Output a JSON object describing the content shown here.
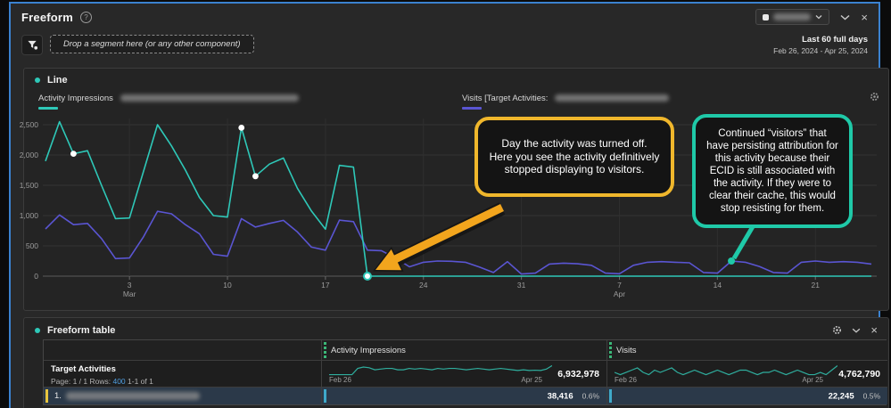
{
  "colors": {
    "accent_blue": "#3b82d0",
    "teal": "#2ec8b8",
    "purple": "#5a55d2",
    "callout_yellow": "#f0b72c",
    "arrow_orange": "#f2a51d",
    "callout_teal": "#1fc9a8",
    "green_marker": "#3bb878",
    "yellow_row_marker": "#e8c53e",
    "row_highlight": "#2b3949",
    "link_blue": "#4f9ee0"
  },
  "panel": {
    "title": "Freeform",
    "info_icon": "?",
    "drop_zone_label": "Drop a segment here (or any other component)",
    "date_range_label": "Last 60 full days",
    "date_range_dates": "Feb 26, 2024 - Apr 25, 2024"
  },
  "line_chart": {
    "title": "Line",
    "legend": [
      {
        "prefix": "Activity Impressions",
        "redacted": true,
        "color": "#2ec8b8"
      },
      {
        "prefix": "Visits [Target Activities:",
        "redacted": true,
        "color": "#5a55d2"
      }
    ]
  },
  "chart_data": {
    "type": "line",
    "title": "Line",
    "x_range": [
      "Feb 26, 2024",
      "Apr 25, 2024"
    ],
    "x_days": 60,
    "xticks": [
      {
        "day": 7,
        "line1": "3",
        "line2": "Mar"
      },
      {
        "day": 14,
        "line1": "10"
      },
      {
        "day": 21,
        "line1": "17"
      },
      {
        "day": 28,
        "line1": "24"
      },
      {
        "day": 35,
        "line1": "31"
      },
      {
        "day": 42,
        "line1": "7",
        "line2": "Apr"
      },
      {
        "day": 49,
        "line1": "14"
      },
      {
        "day": 56,
        "line1": "21"
      }
    ],
    "yticks": [
      0,
      500,
      1000,
      1500,
      2000,
      2500
    ],
    "ylim": [
      0,
      2500
    ],
    "grid": true,
    "legend_position": "top",
    "series": [
      {
        "name": "Activity Impressions",
        "color": "#2ec8b8",
        "values": [
          1900,
          2550,
          2020,
          2070,
          1500,
          950,
          960,
          1730,
          2500,
          2150,
          1750,
          1300,
          1000,
          975,
          2450,
          1650,
          1850,
          1950,
          1450,
          1075,
          775,
          1830,
          1800,
          0,
          0,
          0,
          0,
          0,
          0,
          0,
          0,
          0,
          0,
          0,
          0,
          0,
          0,
          0,
          0,
          0,
          0,
          0,
          0,
          0,
          0,
          0,
          0,
          0,
          0,
          0,
          0,
          0,
          0,
          0,
          0,
          0,
          0,
          0,
          0,
          0
        ]
      },
      {
        "name": "Visits",
        "color": "#5a55d2",
        "values": [
          780,
          1010,
          850,
          870,
          620,
          290,
          300,
          650,
          1070,
          1030,
          850,
          700,
          360,
          330,
          950,
          810,
          870,
          920,
          730,
          480,
          430,
          925,
          900,
          430,
          420,
          300,
          155,
          230,
          250,
          245,
          230,
          150,
          60,
          240,
          35,
          50,
          200,
          215,
          205,
          180,
          50,
          40,
          180,
          230,
          240,
          230,
          220,
          60,
          50,
          250,
          230,
          160,
          60,
          50,
          230,
          250,
          230,
          240,
          230,
          200
        ]
      }
    ],
    "markers": [
      {
        "series": 0,
        "day": 3
      },
      {
        "series": 0,
        "day": 15
      },
      {
        "series": 0,
        "day": 16
      },
      {
        "series": 0,
        "day": 24,
        "ring": true
      },
      {
        "series": 1,
        "day": 50,
        "teal_dot": true
      }
    ]
  },
  "callouts": [
    {
      "text": "Day the activity was turned off.  Here you see the activity definitively stopped displaying to visitors.",
      "border": "#f0b72c"
    },
    {
      "text": "Continued “visitors” that have persisting attribution for this activity because their ECID is still associated with the activity.  If they were to clear their cache, this would stop resisting for them.",
      "border": "#1fc9a8"
    }
  ],
  "table": {
    "title": "Freeform table",
    "columns": [
      {
        "label": "Activity Impressions",
        "total": "6,932,978",
        "spark": [
          1,
          1,
          1,
          1,
          1,
          5.5,
          6.5,
          6,
          4.5,
          5,
          5.5,
          5.5,
          4.5,
          4.5,
          5.5,
          5,
          5.5,
          5,
          4.5,
          5.5,
          5,
          5.5,
          5.5,
          5,
          4.5,
          5,
          5.5,
          5,
          4.5,
          5,
          5.5,
          5,
          4.5,
          4,
          4.5,
          4,
          4.2,
          4,
          5,
          7.5
        ]
      },
      {
        "label": "Visits",
        "total": "4,762,790",
        "spark": [
          5,
          4.5,
          5,
          5.5,
          6,
          5,
          4.5,
          5.5,
          5,
          5.5,
          6,
          5,
          4.5,
          5,
          5.5,
          5,
          4.5,
          5,
          5.5,
          5,
          4.5,
          5,
          5.5,
          5.5,
          5,
          4.5,
          5,
          5,
          5.5,
          5,
          4.5,
          5,
          5.5,
          5,
          4.5,
          4.5,
          5,
          4.5,
          5.5,
          6.5
        ]
      }
    ],
    "row_group": {
      "dimension": "Target Activities",
      "pagination_prefix": "Page: 1 / 1 Rows:",
      "rows_value": "400",
      "pagination_suffix": "1-1 of 1",
      "spark_start": "Feb 26",
      "spark_end": "Apr 25"
    },
    "rows": [
      {
        "index": "1.",
        "redacted": true,
        "values": [
          {
            "value": "38,416",
            "pct": "0.6%"
          },
          {
            "value": "22,245",
            "pct": "0.5%"
          }
        ]
      }
    ]
  }
}
